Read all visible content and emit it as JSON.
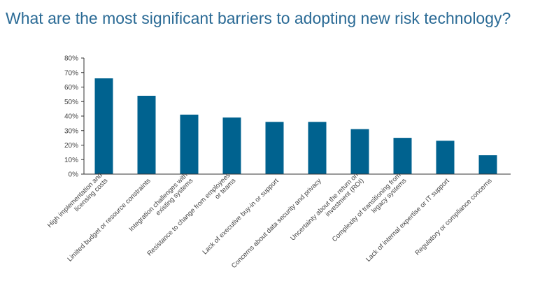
{
  "chart_data": {
    "type": "bar",
    "title": "What are the most significant barriers to adopting new risk technology?",
    "categories": [
      [
        "High implementation and",
        "licensing costs"
      ],
      [
        "Limited budget or resource constraints"
      ],
      [
        "Integration challenges with",
        "existing systems"
      ],
      [
        "Resistance to change from employees",
        "or teams"
      ],
      [
        "Lack of executive buy-in or support"
      ],
      [
        "Concerns about data security and privacy"
      ],
      [
        "Uncertainty about the return on",
        "investment (ROI)"
      ],
      [
        "Complexity of transitioning from",
        "legacy systems"
      ],
      [
        "Lack of internal expertise or IT support"
      ],
      [
        "Regulatory or compliance concerns"
      ]
    ],
    "values": [
      66,
      54,
      41,
      39,
      36,
      36,
      31,
      25,
      23,
      13
    ],
    "ylim": [
      0,
      80
    ],
    "yticks": [
      "0%",
      "10%",
      "20%",
      "30%",
      "40%",
      "50%",
      "60%",
      "70%",
      "80%"
    ],
    "xlabel": "",
    "ylabel": "",
    "grid": false,
    "bar_color": "#00628f"
  }
}
